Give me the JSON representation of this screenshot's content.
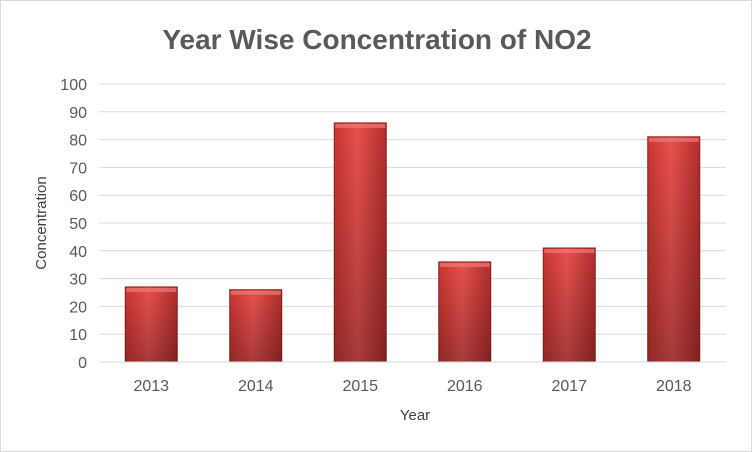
{
  "chart_data": {
    "type": "bar",
    "title": "Year Wise Concentration of NO2",
    "xlabel": "Year",
    "ylabel": "Concentration",
    "categories": [
      "2013",
      "2014",
      "2015",
      "2016",
      "2017",
      "2018"
    ],
    "values": [
      27,
      26,
      86,
      36,
      41,
      81
    ],
    "ylim": [
      0,
      100
    ],
    "yticks": [
      "0",
      "10",
      "20",
      "30",
      "40",
      "50",
      "60",
      "70",
      "80",
      "90",
      "100"
    ],
    "grid": true,
    "legend": "none",
    "colors": {
      "bar_light": "#e8524f",
      "bar_mid": "#d63a37",
      "bar_dark": "#a42a27",
      "bar_edge": "#8c1f1d",
      "gridline": "#d9d9d9",
      "text": "#595959"
    }
  }
}
